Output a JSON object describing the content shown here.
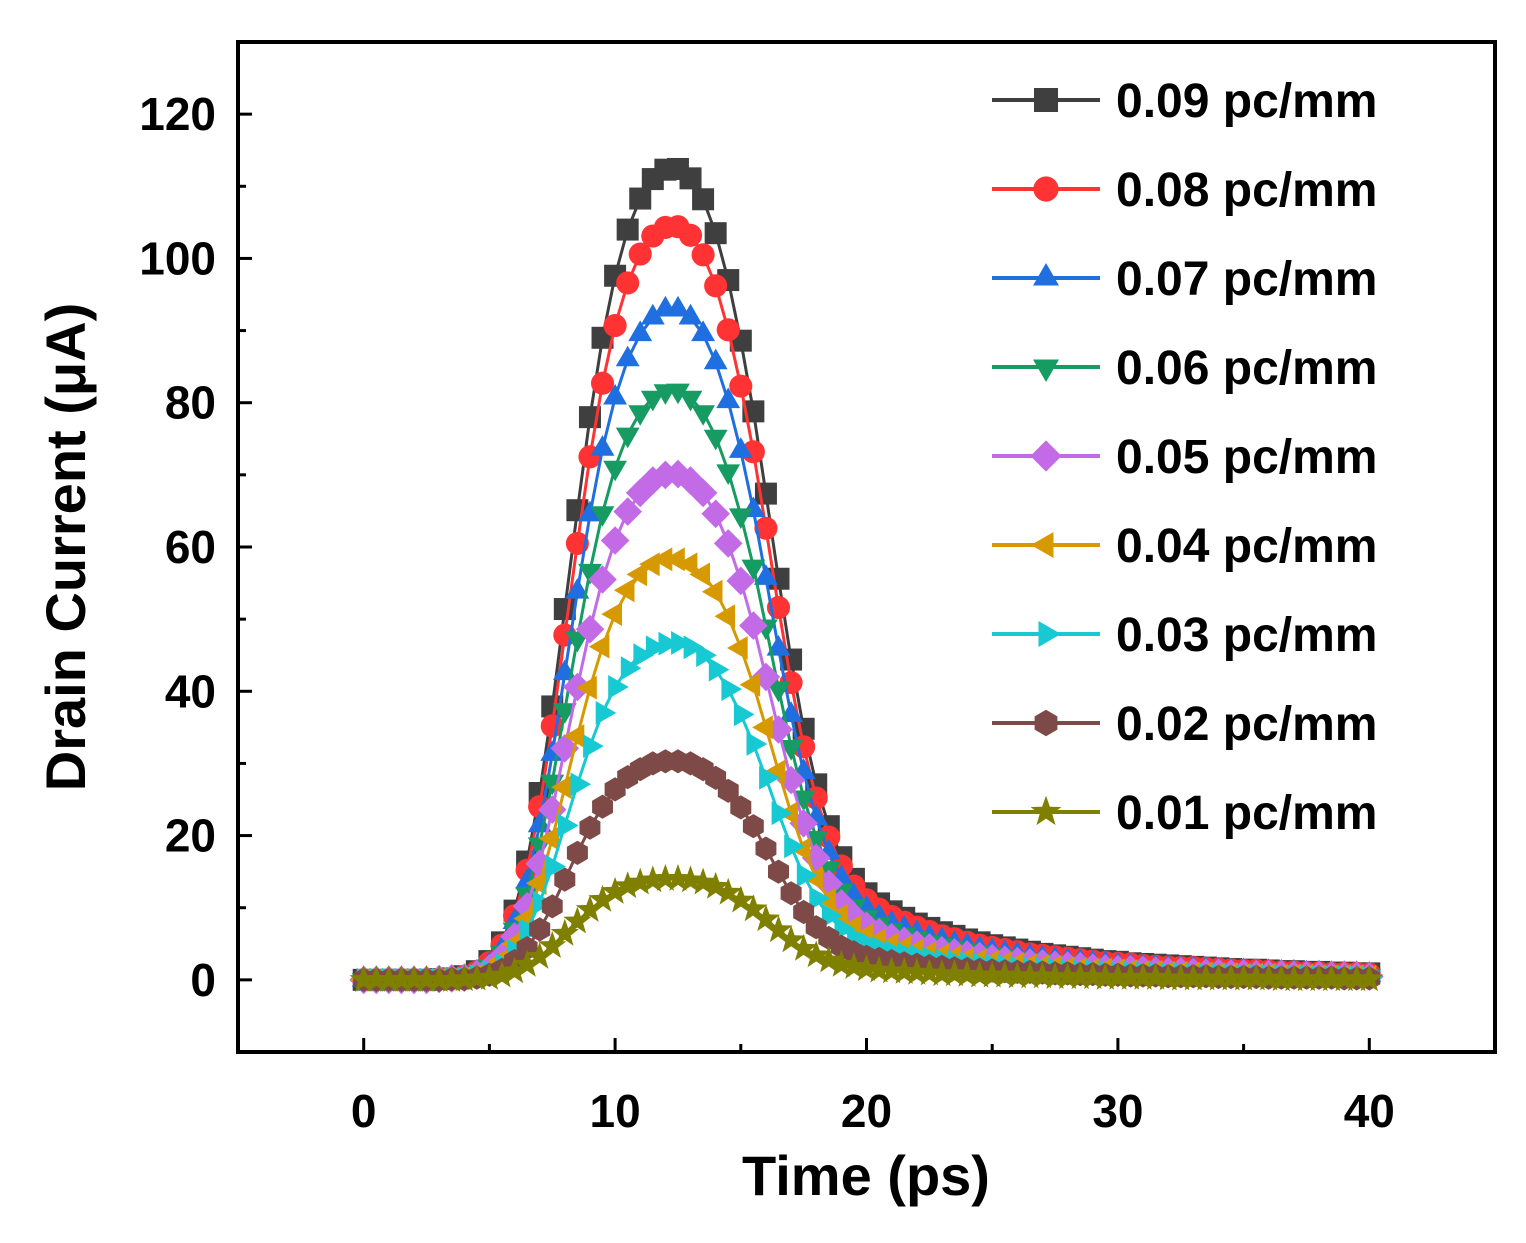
{
  "chart_data": {
    "type": "line",
    "title": "",
    "xlabel": "Time (ps)",
    "ylabel": "Drain Current (μA)",
    "xlim": [
      -5,
      45
    ],
    "ylim": [
      -10,
      130
    ],
    "xticks": [
      0,
      10,
      20,
      30,
      40
    ],
    "xtick_labels": [
      "0",
      "10",
      "20",
      "30",
      "40"
    ],
    "yticks": [
      0,
      20,
      40,
      60,
      80,
      100,
      120
    ],
    "ytick_labels": [
      "0",
      "20",
      "40",
      "60",
      "80",
      "100",
      "120"
    ],
    "legend_position": "top-right",
    "grid": false,
    "x": [
      0,
      0.5,
      1,
      1.5,
      2,
      2.5,
      3,
      3.5,
      4,
      4.5,
      5,
      5.5,
      6,
      6.5,
      7,
      7.5,
      8,
      8.5,
      9,
      9.5,
      10,
      10.5,
      11,
      11.5,
      12,
      12.5,
      13,
      13.5,
      14,
      14.5,
      15,
      15.5,
      16,
      16.5,
      17,
      17.5,
      18,
      18.5,
      19,
      19.5,
      20,
      20.5,
      21,
      21.5,
      22,
      22.5,
      23,
      23.5,
      24,
      24.5,
      25,
      25.5,
      26,
      26.5,
      27,
      27.5,
      28,
      28.5,
      29,
      29.5,
      30,
      30.5,
      31,
      31.5,
      32,
      32.5,
      33,
      33.5,
      34,
      34.5,
      35,
      35.5,
      36,
      36.5,
      37,
      37.5,
      38,
      38.5,
      39,
      39.5,
      40
    ],
    "series": [
      {
        "name": "0.09 pc/mm",
        "color": "#3f3f3f",
        "marker": "square",
        "values": [
          0,
          0,
          0,
          0,
          0,
          0,
          0.1,
          0.2,
          0.5,
          1.2,
          2.6,
          5.2,
          9.6,
          16.4,
          25.9,
          37.9,
          51.4,
          65.1,
          78.0,
          89.0,
          97.6,
          104.0,
          108.3,
          111.0,
          112.3,
          112.4,
          111.1,
          108.2,
          103.5,
          97.0,
          88.6,
          78.8,
          67.4,
          55.6,
          44.4,
          34.8,
          27.1,
          21.3,
          17.0,
          14.0,
          12.0,
          10.6,
          9.5,
          8.6,
          7.8,
          7.2,
          6.6,
          6.1,
          5.6,
          5.2,
          4.8,
          4.5,
          4.2,
          3.9,
          3.6,
          3.4,
          3.2,
          3.0,
          2.8,
          2.6,
          2.5,
          2.3,
          2.2,
          2.1,
          2.0,
          1.9,
          1.8,
          1.7,
          1.6,
          1.5,
          1.4,
          1.4,
          1.3,
          1.2,
          1.2,
          1.1,
          1.1,
          1.0,
          1.0,
          0.9,
          0.9
        ]
      },
      {
        "name": "0.08 pc/mm",
        "color": "#ff3333",
        "marker": "circle",
        "values": [
          0,
          0,
          0,
          0,
          0,
          0,
          0.1,
          0.2,
          0.5,
          1.1,
          2.4,
          4.8,
          8.9,
          15.2,
          24.0,
          35.2,
          47.8,
          60.5,
          72.5,
          82.7,
          90.7,
          96.6,
          100.6,
          103.1,
          104.3,
          104.4,
          103.2,
          100.5,
          96.2,
          90.1,
          82.3,
          73.2,
          62.6,
          51.6,
          41.2,
          32.3,
          25.2,
          19.8,
          15.8,
          13.0,
          11.1,
          9.8,
          8.8,
          8.0,
          7.3,
          6.7,
          6.1,
          5.7,
          5.2,
          4.8,
          4.5,
          4.2,
          3.9,
          3.6,
          3.4,
          3.2,
          3.0,
          2.8,
          2.6,
          2.4,
          2.3,
          2.2,
          2.0,
          1.9,
          1.8,
          1.7,
          1.7,
          1.6,
          1.5,
          1.4,
          1.3,
          1.3,
          1.2,
          1.1,
          1.1,
          1.0,
          1.0,
          0.9,
          0.9,
          0.9,
          0.8
        ]
      },
      {
        "name": "0.07 pc/mm",
        "color": "#1f6fe0",
        "marker": "triangle-up",
        "values": [
          0,
          0,
          0,
          0,
          0,
          0,
          0.1,
          0.2,
          0.4,
          1.0,
          2.1,
          4.3,
          8.0,
          13.6,
          21.4,
          31.3,
          42.5,
          53.8,
          64.5,
          73.6,
          80.7,
          86.0,
          89.5,
          91.8,
          92.9,
          92.9,
          91.8,
          89.5,
          85.6,
          80.2,
          73.3,
          65.1,
          55.7,
          45.9,
          36.7,
          28.8,
          22.4,
          17.6,
          14.1,
          11.6,
          9.9,
          8.7,
          7.8,
          7.1,
          6.5,
          5.9,
          5.5,
          5.0,
          4.7,
          4.3,
          4.0,
          3.7,
          3.5,
          3.2,
          3.0,
          2.8,
          2.6,
          2.5,
          2.3,
          2.2,
          2.0,
          1.9,
          1.8,
          1.7,
          1.6,
          1.5,
          1.5,
          1.4,
          1.3,
          1.2,
          1.2,
          1.1,
          1.1,
          1.0,
          1.0,
          0.9,
          0.9,
          0.8,
          0.8,
          0.8,
          0.7
        ]
      },
      {
        "name": "0.06 pc/mm",
        "color": "#169b62",
        "marker": "triangle-down",
        "values": [
          0,
          0,
          0,
          0,
          0,
          0,
          0.1,
          0.2,
          0.4,
          0.9,
          1.9,
          3.8,
          7.0,
          11.9,
          18.8,
          27.5,
          37.4,
          47.3,
          56.7,
          64.7,
          71.0,
          75.6,
          78.7,
          80.7,
          81.6,
          81.7,
          80.7,
          78.7,
          75.3,
          70.5,
          64.4,
          57.3,
          49.0,
          40.4,
          32.3,
          25.3,
          19.7,
          15.5,
          12.4,
          10.2,
          8.7,
          7.7,
          6.9,
          6.3,
          5.7,
          5.2,
          4.8,
          4.4,
          4.1,
          3.8,
          3.5,
          3.3,
          3.0,
          2.8,
          2.6,
          2.5,
          2.3,
          2.2,
          2.0,
          1.9,
          1.8,
          1.7,
          1.6,
          1.5,
          1.4,
          1.4,
          1.3,
          1.2,
          1.1,
          1.1,
          1.0,
          1.0,
          0.9,
          0.9,
          0.8,
          0.8,
          0.8,
          0.7,
          0.7,
          0.7,
          0.6
        ]
      },
      {
        "name": "0.05 pc/mm",
        "color": "#c36be6",
        "marker": "diamond",
        "values": [
          0,
          0,
          0,
          0,
          0,
          0,
          0.1,
          0.2,
          0.3,
          0.8,
          1.6,
          3.2,
          6.0,
          10.2,
          16.1,
          23.6,
          32.1,
          40.6,
          48.6,
          55.5,
          60.9,
          64.9,
          67.5,
          69.2,
          70.0,
          70.1,
          69.2,
          67.5,
          64.6,
          60.5,
          55.3,
          49.1,
          42.0,
          34.7,
          27.7,
          21.7,
          16.9,
          13.3,
          10.6,
          8.8,
          7.5,
          6.6,
          5.9,
          5.4,
          4.9,
          4.5,
          4.1,
          3.8,
          3.5,
          3.3,
          3.0,
          2.8,
          2.6,
          2.4,
          2.3,
          2.1,
          2.0,
          1.9,
          1.7,
          1.6,
          1.5,
          1.5,
          1.4,
          1.3,
          1.2,
          1.2,
          1.1,
          1.0,
          1.0,
          0.9,
          0.9,
          0.8,
          0.8,
          0.8,
          0.7,
          0.7,
          0.7,
          0.6,
          0.6,
          0.6,
          0.5
        ]
      },
      {
        "name": "0.04 pc/mm",
        "color": "#d69a00",
        "marker": "triangle-left",
        "values": [
          0,
          0,
          0,
          0,
          0,
          0,
          0.1,
          0.1,
          0.3,
          0.6,
          1.3,
          2.7,
          5.0,
          8.5,
          13.4,
          19.6,
          26.7,
          33.8,
          40.5,
          46.2,
          50.7,
          54.0,
          56.2,
          57.6,
          58.3,
          58.3,
          57.6,
          56.2,
          53.8,
          50.4,
          46.0,
          40.9,
          35.0,
          28.9,
          23.1,
          18.1,
          14.1,
          11.1,
          8.9,
          7.3,
          6.2,
          5.5,
          4.9,
          4.5,
          4.1,
          3.7,
          3.4,
          3.2,
          2.9,
          2.7,
          2.5,
          2.3,
          2.2,
          2.0,
          1.9,
          1.8,
          1.6,
          1.5,
          1.4,
          1.4,
          1.3,
          1.2,
          1.1,
          1.1,
          1.0,
          1.0,
          0.9,
          0.9,
          0.8,
          0.8,
          0.7,
          0.7,
          0.7,
          0.6,
          0.6,
          0.6,
          0.5,
          0.5,
          0.5,
          0.5,
          0.4
        ]
      },
      {
        "name": "0.03 pc/mm",
        "color": "#17c9d2",
        "marker": "triangle-right",
        "values": [
          0,
          0,
          0,
          0,
          0,
          0,
          0,
          0.1,
          0.2,
          0.5,
          1.1,
          2.1,
          4.0,
          6.8,
          10.7,
          15.7,
          21.4,
          27.1,
          32.4,
          37.0,
          40.6,
          43.2,
          45.0,
          46.1,
          46.6,
          46.7,
          46.1,
          45.0,
          43.0,
          40.3,
          36.8,
          32.7,
          28.0,
          23.1,
          18.5,
          14.5,
          11.3,
          8.9,
          7.1,
          5.8,
          5.0,
          4.4,
          3.9,
          3.6,
          3.3,
          3.0,
          2.7,
          2.5,
          2.3,
          2.2,
          2.0,
          1.9,
          1.7,
          1.6,
          1.5,
          1.4,
          1.3,
          1.2,
          1.2,
          1.1,
          1.0,
          1.0,
          0.9,
          0.9,
          0.8,
          0.8,
          0.7,
          0.7,
          0.7,
          0.6,
          0.6,
          0.6,
          0.5,
          0.5,
          0.5,
          0.5,
          0.4,
          0.4,
          0.4,
          0.4,
          0.3
        ]
      },
      {
        "name": "0.02 pc/mm",
        "color": "#7d4a47",
        "marker": "hexagon",
        "values": [
          0,
          0,
          0,
          0,
          0,
          0,
          0,
          0.1,
          0.1,
          0.3,
          0.7,
          1.4,
          2.6,
          4.4,
          7.0,
          10.2,
          13.9,
          17.6,
          21.1,
          24.0,
          26.4,
          28.1,
          29.2,
          30.0,
          30.3,
          30.3,
          30.0,
          29.2,
          28.0,
          26.2,
          23.9,
          21.3,
          18.2,
          15.0,
          12.0,
          9.4,
          7.3,
          5.8,
          4.6,
          3.8,
          3.2,
          2.9,
          2.6,
          2.3,
          2.1,
          1.9,
          1.8,
          1.6,
          1.5,
          1.4,
          1.3,
          1.2,
          1.1,
          1.1,
          1.0,
          0.9,
          0.9,
          0.8,
          0.8,
          0.7,
          0.7,
          0.6,
          0.6,
          0.6,
          0.5,
          0.5,
          0.5,
          0.5,
          0.4,
          0.4,
          0.4,
          0.4,
          0.3,
          0.3,
          0.3,
          0.3,
          0.3,
          0.3,
          0.2,
          0.2,
          0.2
        ]
      },
      {
        "name": "0.01 pc/mm",
        "color": "#7f7f00",
        "marker": "star",
        "values": [
          0,
          0,
          0,
          0,
          0,
          0,
          0,
          0,
          0.1,
          0.2,
          0.3,
          0.6,
          1.2,
          2.1,
          3.2,
          4.7,
          6.4,
          8.1,
          9.7,
          11.1,
          12.2,
          13.0,
          13.5,
          13.8,
          14.0,
          14.0,
          13.8,
          13.5,
          12.9,
          12.1,
          11.0,
          9.8,
          8.4,
          6.9,
          5.5,
          4.3,
          3.4,
          2.7,
          2.1,
          1.8,
          1.5,
          1.3,
          1.2,
          1.1,
          1.0,
          0.9,
          0.8,
          0.8,
          0.7,
          0.6,
          0.6,
          0.6,
          0.5,
          0.5,
          0.5,
          0.4,
          0.4,
          0.4,
          0.4,
          0.3,
          0.3,
          0.3,
          0.3,
          0.3,
          0.2,
          0.2,
          0.2,
          0.2,
          0.2,
          0.2,
          0.2,
          0.2,
          0.2,
          0.1,
          0.1,
          0.1,
          0.1,
          0.1,
          0.1,
          0.1,
          0.1
        ]
      }
    ]
  }
}
